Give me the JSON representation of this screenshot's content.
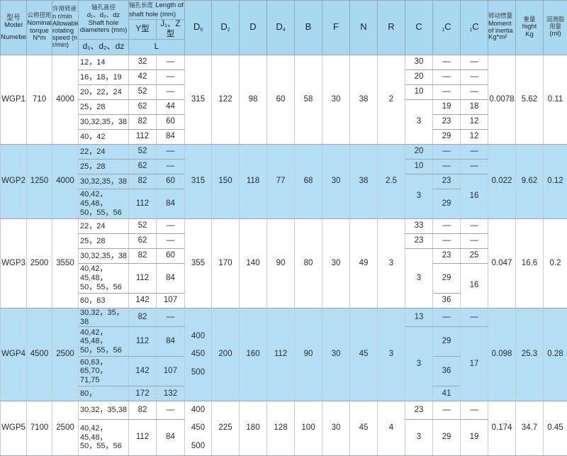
{
  "header": {
    "model_cn": "型号",
    "model_en": "Model",
    "model_en2": "Numeber",
    "torque_cn": "公称扭矩",
    "torque_en": "Nominal torque",
    "torque_unit": "N*m",
    "speed_cn": "许用转速",
    "speed_en": "n r/min Allowable rotating speed (n r/min)",
    "bore_cn": "轴孔直径",
    "bore_sym": "d₁、d₂、dz",
    "bore_en": "Shaft hole diameters (mm)",
    "bore_sub": "d₁、d₂、dz",
    "length_cn": "轴孔长度",
    "length_en": "Length of shaft hole (mm)",
    "length_y": "Y型",
    "length_j": "J₁、Z型",
    "length_l": "L",
    "dims": [
      {
        "main": "D",
        "sub": "0"
      },
      {
        "main": "D",
        "sub": "2"
      },
      {
        "main": "D",
        "sub": ""
      },
      {
        "main": "D",
        "sub": "4"
      },
      {
        "main": "B",
        "sub": ""
      },
      {
        "main": "F",
        "sub": ""
      },
      {
        "main": "N",
        "sub": ""
      },
      {
        "main": "R",
        "sub": ""
      },
      {
        "main": "C",
        "sub": ""
      }
    ],
    "c1": {
      "pre": "1",
      "main": "C"
    },
    "c2": {
      "pre": "1",
      "main": "C"
    },
    "inertia_cn": "转动惯量",
    "inertia_en": "Moment of inertia",
    "inertia_unit": "Kg*m²",
    "weight_cn": "重量",
    "weight_en": "hight",
    "weight_unit": "Kg",
    "grease_cn": "润滑脂用量",
    "grease_unit": "(ml)"
  },
  "colors": {
    "header_bg": "#a9d9f1",
    "band_bg": "#b4def4",
    "border": "#9aa7b0"
  },
  "models": [
    {
      "model": "WGP1",
      "torque": "710",
      "speed": "4000",
      "bores": [
        {
          "d": "12，14",
          "y": "32",
          "j": "—"
        },
        {
          "d": "16，18，19",
          "y": "42",
          "j": "—"
        },
        {
          "d": "20，22，24",
          "y": "52",
          "j": "—"
        },
        {
          "d": "25，28",
          "y": "62",
          "j": "44"
        },
        {
          "d": "30,32,35，38",
          "y": "82",
          "j": "60"
        },
        {
          "d": "40，42",
          "y": "112",
          "j": "84"
        }
      ],
      "D0": "315",
      "D2": "122",
      "D": "98",
      "D4": "60",
      "B": "58",
      "F": "30",
      "N": "38",
      "R": "2",
      "C": [
        "30",
        "20",
        "10",
        "3"
      ],
      "C1": [
        "—",
        "—",
        "—",
        "19",
        "23",
        "29"
      ],
      "C2": [
        "—",
        "—",
        "—",
        "18",
        "12",
        "12"
      ],
      "inertia": "0.0078",
      "weight": "5.62",
      "grease": "0.11"
    },
    {
      "model": "WGP2",
      "torque": "1250",
      "speed": "4000",
      "bores": [
        {
          "d": "22，24",
          "y": "52",
          "j": "—"
        },
        {
          "d": "25，28",
          "y": "62",
          "j": "—"
        },
        {
          "d": "30,32,35，38",
          "y": "82",
          "j": "60"
        },
        {
          "d": "40,42，45,48，\n50，55，56",
          "y": "112",
          "j": "84"
        }
      ],
      "D0": "315",
      "D2": "150",
      "D": "118",
      "D4": "77",
      "B": "68",
      "F": "30",
      "N": "38",
      "R": "2.5",
      "C": [
        "20",
        "10",
        "3"
      ],
      "C1": [
        "—",
        "—",
        "23",
        "29"
      ],
      "C2": [
        "—",
        "—",
        "16"
      ],
      "inertia": "0.022",
      "weight": "9.62",
      "grease": "0.12"
    },
    {
      "model": "WGP3",
      "torque": "2500",
      "speed": "3550",
      "bores": [
        {
          "d": "22，24",
          "y": "52",
          "j": "—"
        },
        {
          "d": "25，28",
          "y": "62",
          "j": "—"
        },
        {
          "d": "30,32,35，38",
          "y": "82",
          "j": "60"
        },
        {
          "d": "40,42，45,48，\n50，55，56",
          "y": "112",
          "j": "84"
        },
        {
          "d": "60，63",
          "y": "142",
          "j": "107"
        }
      ],
      "D0": "355",
      "D2": "170",
      "D": "140",
      "D4": "90",
      "B": "80",
      "F": "30",
      "N": "49",
      "R": "3",
      "C": [
        "33",
        "23",
        "3"
      ],
      "C1": [
        "—",
        "—",
        "23",
        "29",
        "36"
      ],
      "C2": [
        "—",
        "—",
        "25",
        "16"
      ],
      "inertia": "0.047",
      "weight": "16.6",
      "grease": "0.2"
    },
    {
      "model": "WGP4",
      "torque": "4500",
      "speed": "2500",
      "bores": [
        {
          "d": "30,32，35，38",
          "y": "82",
          "j": "—"
        },
        {
          "d": "40,42，45,48，\n50，55，56",
          "y": "112",
          "j": "84"
        },
        {
          "d": "60,63，65,70，\n71,75",
          "y": "142",
          "j": "107"
        },
        {
          "d": "80，",
          "y": "172",
          "j": "132"
        }
      ],
      "D0": "400\n450\n500",
      "D2": "200",
      "D": "160",
      "D4": "112",
      "B": "90",
      "F": "30",
      "N": "45",
      "R": "3",
      "C": [
        "13",
        "3"
      ],
      "C1": [
        "—",
        "29",
        "36",
        "41"
      ],
      "C2": [
        "—",
        "17"
      ],
      "inertia": "0.098",
      "weight": "25.3",
      "grease": "0.28"
    },
    {
      "model": "WGP5",
      "torque": "7100",
      "speed": "2500",
      "bores": [
        {
          "d": "30,32，35,38",
          "y": "82",
          "j": "—"
        },
        {
          "d": "40,42，45,48，\n50，55，56",
          "y": "112",
          "j": "84"
        }
      ],
      "D0": "400\n450\n500",
      "D2": "225",
      "D": "180",
      "D4": "128",
      "B": "100",
      "F": "30",
      "N": "45",
      "R": "4",
      "C": [
        "23",
        "3"
      ],
      "C1": [
        "—",
        "29"
      ],
      "C2": [
        "—",
        "19"
      ],
      "inertia": "0.174",
      "weight": "34.7",
      "grease": "0.45"
    }
  ]
}
